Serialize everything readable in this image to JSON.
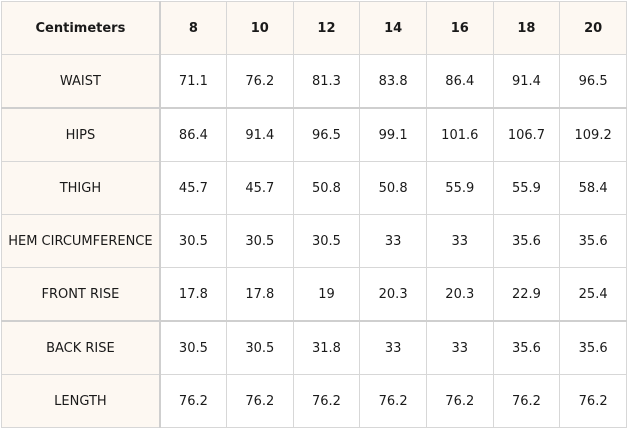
{
  "table": {
    "corner_label": "Centimeters",
    "columns": [
      "8",
      "10",
      "12",
      "14",
      "16",
      "18",
      "20"
    ],
    "rows": [
      {
        "label": "WAIST",
        "values": [
          "71.1",
          "76.2",
          "81.3",
          "83.8",
          "86.4",
          "91.4",
          "96.5"
        ]
      },
      {
        "label": "HIPS",
        "values": [
          "86.4",
          "91.4",
          "96.5",
          "99.1",
          "101.6",
          "106.7",
          "109.2"
        ]
      },
      {
        "label": "THIGH",
        "values": [
          "45.7",
          "45.7",
          "50.8",
          "50.8",
          "55.9",
          "55.9",
          "58.4"
        ]
      },
      {
        "label": "HEM CIRCUMFERENCE",
        "values": [
          "30.5",
          "30.5",
          "30.5",
          "33",
          "33",
          "35.6",
          "35.6"
        ]
      },
      {
        "label": "FRONT RISE",
        "values": [
          "17.8",
          "17.8",
          "19",
          "20.3",
          "20.3",
          "22.9",
          "25.4"
        ]
      },
      {
        "label": "BACK RISE",
        "values": [
          "30.5",
          "30.5",
          "31.8",
          "33",
          "33",
          "35.6",
          "35.6"
        ]
      },
      {
        "label": "LENGTH",
        "values": [
          "76.2",
          "76.2",
          "76.2",
          "76.2",
          "76.2",
          "76.2",
          "76.2"
        ]
      }
    ]
  },
  "colors": {
    "header_bg": "#fdf8f2",
    "border": "#d7d7d7",
    "text": "#1a1a1a"
  }
}
